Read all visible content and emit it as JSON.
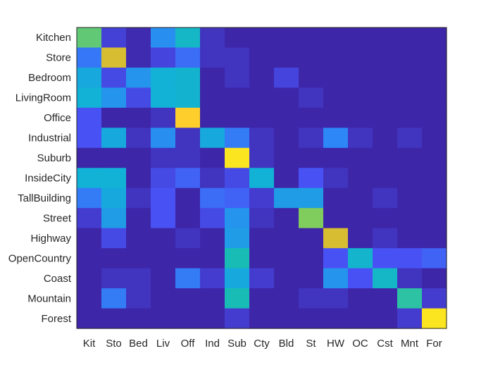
{
  "chart_data": {
    "type": "heatmap",
    "title": "",
    "xlabel": "",
    "ylabel": "",
    "row_labels": [
      "Kitchen",
      "Store",
      "Bedroom",
      "LivingRoom",
      "Office",
      "Industrial",
      "Suburb",
      "InsideCity",
      "TallBuilding",
      "Street",
      "Highway",
      "OpenCountry",
      "Coast",
      "Mountain",
      "Forest"
    ],
    "col_labels": [
      "Kit",
      "Sto",
      "Bed",
      "Liv",
      "Off",
      "Ind",
      "Sub",
      "Cty",
      "Bld",
      "St",
      "HW",
      "OC",
      "Cst",
      "Mnt",
      "For"
    ],
    "values": [
      [
        0.55,
        0.06,
        0.01,
        0.22,
        0.35,
        0.03,
        0.0,
        0.0,
        0.0,
        0.0,
        0.0,
        0.0,
        0.0,
        0.0,
        0.0
      ],
      [
        0.17,
        0.75,
        0.01,
        0.07,
        0.15,
        0.03,
        0.03,
        0.0,
        0.0,
        0.0,
        0.0,
        0.0,
        0.0,
        0.0,
        0.0
      ],
      [
        0.28,
        0.08,
        0.23,
        0.3,
        0.32,
        0.0,
        0.03,
        0.0,
        0.07,
        0.0,
        0.0,
        0.0,
        0.0,
        0.0,
        0.0
      ],
      [
        0.3,
        0.23,
        0.08,
        0.3,
        0.32,
        0.0,
        0.0,
        0.0,
        0.0,
        0.03,
        0.0,
        0.0,
        0.0,
        0.0,
        0.0
      ],
      [
        0.1,
        0.0,
        0.0,
        0.03,
        0.9,
        0.0,
        0.0,
        0.0,
        0.0,
        0.0,
        0.0,
        0.0,
        0.0,
        0.0,
        0.0
      ],
      [
        0.1,
        0.28,
        0.03,
        0.22,
        0.03,
        0.28,
        0.18,
        0.03,
        0.0,
        0.03,
        0.2,
        0.03,
        0.0,
        0.03,
        0.0
      ],
      [
        0.0,
        0.0,
        0.0,
        0.03,
        0.03,
        0.0,
        0.95,
        0.03,
        0.0,
        0.0,
        0.0,
        0.0,
        0.0,
        0.0,
        0.0
      ],
      [
        0.3,
        0.3,
        0.0,
        0.08,
        0.13,
        0.03,
        0.08,
        0.3,
        0.0,
        0.1,
        0.03,
        0.0,
        0.0,
        0.0,
        0.0
      ],
      [
        0.18,
        0.28,
        0.03,
        0.1,
        0.0,
        0.15,
        0.13,
        0.05,
        0.25,
        0.25,
        0.0,
        0.0,
        0.03,
        0.0,
        0.0
      ],
      [
        0.05,
        0.25,
        0.0,
        0.1,
        0.0,
        0.08,
        0.23,
        0.03,
        0.0,
        0.6,
        0.0,
        0.0,
        0.0,
        0.0,
        0.0
      ],
      [
        0.0,
        0.08,
        0.0,
        0.0,
        0.03,
        0.0,
        0.25,
        0.0,
        0.0,
        0.0,
        0.75,
        0.0,
        0.03,
        0.0,
        0.0
      ],
      [
        0.0,
        0.0,
        0.0,
        0.0,
        0.0,
        0.0,
        0.4,
        0.0,
        0.0,
        0.0,
        0.1,
        0.33,
        0.1,
        0.1,
        0.13
      ],
      [
        0.0,
        0.03,
        0.03,
        0.0,
        0.18,
        0.05,
        0.28,
        0.05,
        0.0,
        0.0,
        0.23,
        0.1,
        0.35,
        0.03,
        0.0
      ],
      [
        0.0,
        0.18,
        0.03,
        0.0,
        0.0,
        0.0,
        0.4,
        0.0,
        0.0,
        0.03,
        0.03,
        0.0,
        0.0,
        0.45,
        0.05
      ],
      [
        0.0,
        0.0,
        0.0,
        0.0,
        0.0,
        0.0,
        0.05,
        0.0,
        0.0,
        0.0,
        0.0,
        0.0,
        0.0,
        0.05,
        0.95
      ]
    ],
    "colormap": "parula",
    "color_range": [
      0,
      1
    ],
    "grid": false,
    "legend": "none"
  }
}
